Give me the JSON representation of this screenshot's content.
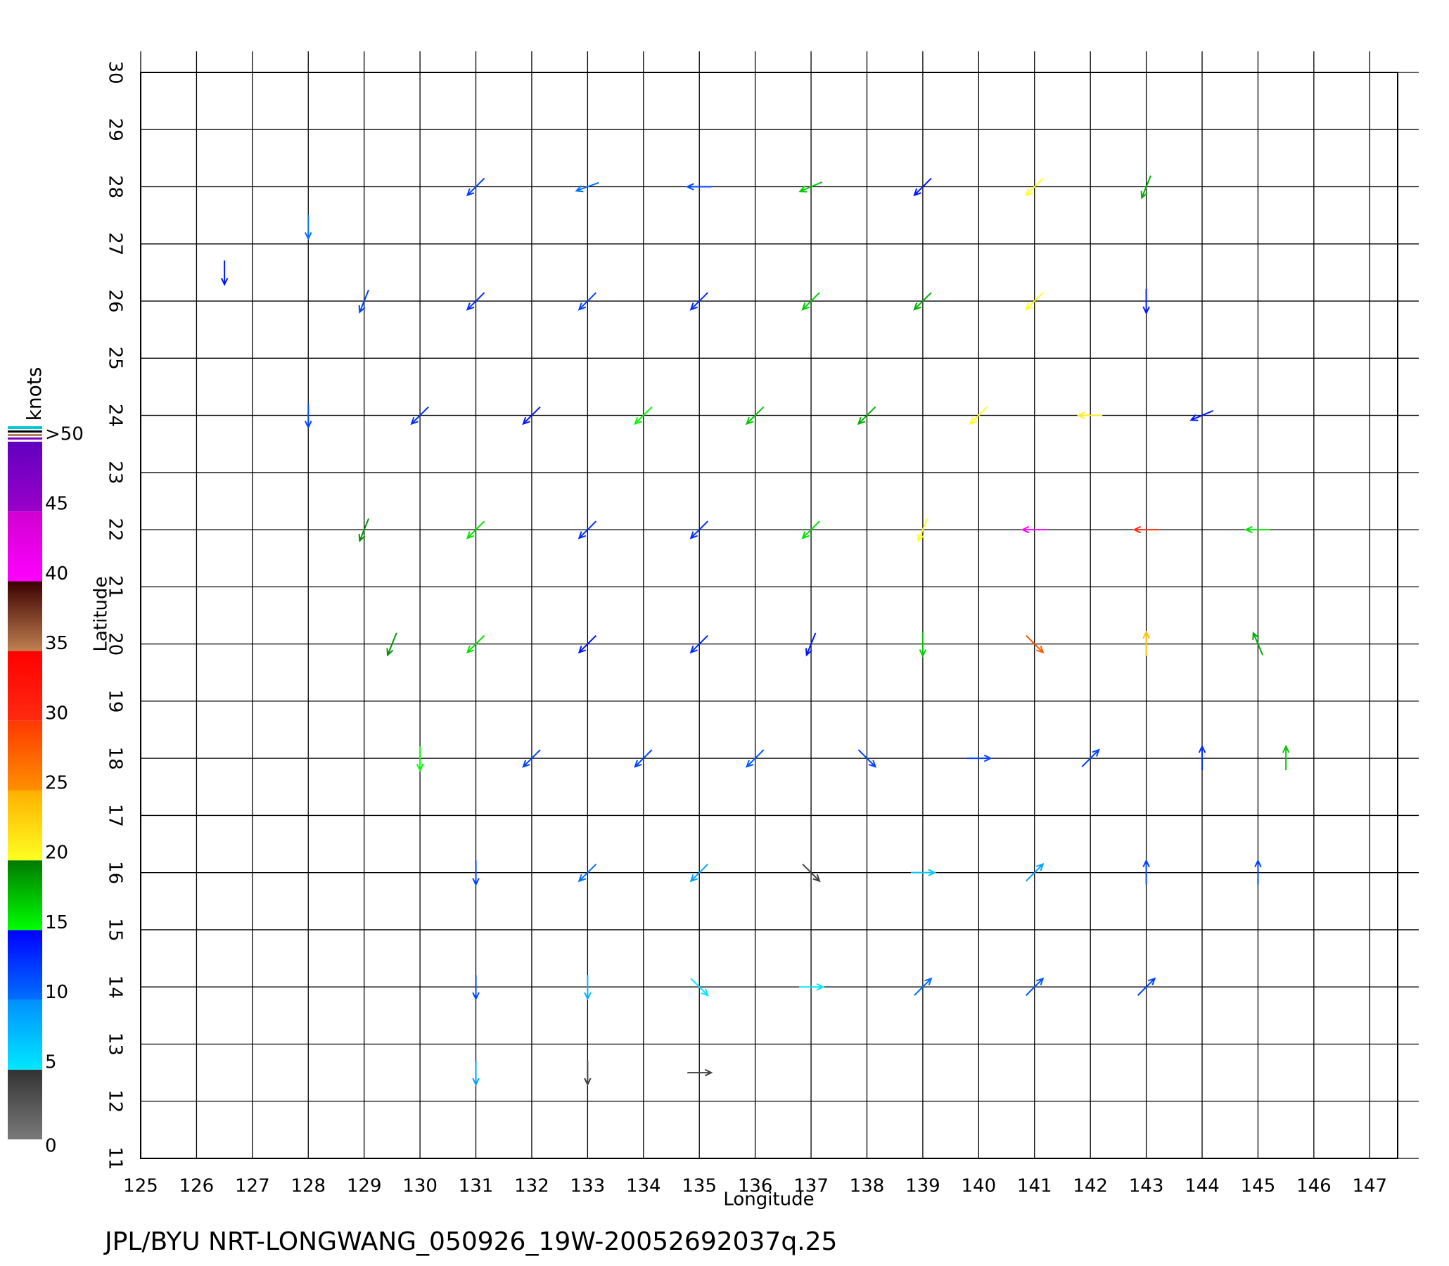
{
  "chart_data": {
    "type": "quiver",
    "title": "JPL/BYU NRT-LONGWANG_050926_19W-20052692037q.25",
    "x_label": "Longitude",
    "y_label": "Latitude",
    "xlim": [
      125,
      147.5
    ],
    "ylim": [
      11,
      30
    ],
    "xticks": [
      125,
      126,
      127,
      128,
      129,
      130,
      131,
      132,
      133,
      134,
      135,
      136,
      137,
      138,
      139,
      140,
      141,
      142,
      143,
      144,
      145,
      146,
      147
    ],
    "yticks": [
      11,
      12,
      13,
      14,
      15,
      16,
      17,
      18,
      19,
      20,
      21,
      22,
      23,
      24,
      25,
      26,
      27,
      28,
      29,
      30
    ],
    "grid": true,
    "colorbar": {
      "label": "knots",
      "clim": [
        0,
        50
      ],
      "ticks": [
        0,
        5,
        10,
        15,
        20,
        25,
        30,
        35,
        40,
        45,
        {
          "value": 50,
          "label": ">50"
        }
      ],
      "colors": [
        [
          "#7a7a7a",
          "#333333"
        ],
        [
          "#00e8ff",
          "#0090ff"
        ],
        [
          "#0070ff",
          "#0000ff"
        ],
        [
          "#00ff00",
          "#007a00"
        ],
        [
          "#ffff20",
          "#ffb000"
        ],
        [
          "#ff9000",
          "#ff3800"
        ],
        [
          "#ff2a10",
          "#ff0000"
        ],
        [
          "#c08050",
          "#3a0000"
        ],
        [
          "#ff00ff",
          "#d000d0"
        ],
        [
          "#9a00c8",
          "#6000c0"
        ]
      ]
    },
    "vectors": {
      "lon": [
        131,
        133,
        135,
        137,
        139,
        141,
        143,
        129,
        131,
        133,
        135,
        137,
        139,
        141,
        143,
        128,
        130,
        132,
        134,
        136,
        138,
        140,
        142,
        144,
        129,
        131,
        133,
        135,
        137,
        139,
        141,
        143,
        145,
        129.5,
        131,
        133,
        135,
        137,
        139,
        141,
        143,
        145,
        130,
        132,
        134,
        136,
        138,
        140,
        142,
        144,
        145.5,
        131,
        133,
        135,
        137,
        139,
        141,
        143,
        145,
        131,
        133,
        135,
        137,
        139,
        141,
        143,
        131,
        133,
        135,
        126.5,
        128
      ],
      "lat": [
        28,
        28,
        28,
        28,
        28,
        28,
        28,
        26,
        26,
        26,
        26,
        26,
        26,
        26,
        26,
        24,
        24,
        24,
        24,
        24,
        24,
        24,
        24,
        24,
        22,
        22,
        22,
        22,
        22,
        22,
        22,
        22,
        22,
        20,
        20,
        20,
        20,
        20,
        20,
        20,
        20,
        20,
        18,
        18,
        18,
        18,
        18,
        18,
        18,
        18,
        18,
        16,
        16,
        16,
        16,
        16,
        16,
        16,
        16,
        14,
        14,
        14,
        14,
        14,
        14,
        14,
        12.5,
        12.5,
        12.5,
        26.5,
        27.3
      ],
      "speed": [
        12,
        10,
        12,
        17,
        14,
        20,
        18,
        12,
        13,
        12,
        13,
        17,
        18,
        20,
        14,
        12,
        13,
        14,
        15,
        17,
        18,
        20,
        21,
        14,
        19,
        16,
        13,
        13,
        16,
        20,
        40,
        30,
        16,
        19,
        16,
        14,
        13,
        14,
        17,
        28,
        24,
        18,
        15,
        12,
        12,
        11,
        12,
        12,
        12,
        13,
        17,
        12,
        10,
        9,
        4,
        7,
        9,
        12,
        12,
        12,
        8,
        5,
        5,
        10,
        11,
        12,
        9,
        4,
        4,
        14,
        10
      ],
      "direction": [
        225,
        250,
        270,
        247,
        225,
        225,
        202,
        202,
        225,
        225,
        225,
        225,
        225,
        225,
        180,
        180,
        225,
        225,
        225,
        225,
        225,
        225,
        270,
        247,
        202,
        225,
        225,
        225,
        225,
        202,
        270,
        270,
        270,
        202,
        225,
        225,
        225,
        202,
        180,
        135,
        0,
        337,
        180,
        225,
        225,
        225,
        135,
        90,
        45,
        0,
        0,
        180,
        225,
        225,
        135,
        90,
        45,
        0,
        0,
        180,
        180,
        135,
        90,
        45,
        45,
        45,
        180,
        180,
        90,
        180,
        180
      ]
    }
  }
}
